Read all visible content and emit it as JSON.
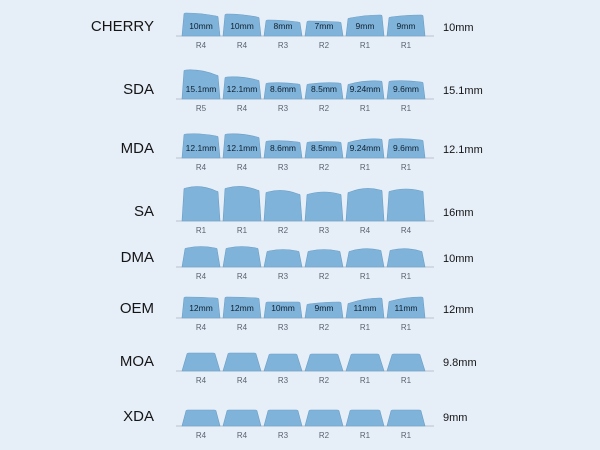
{
  "colors": {
    "background": "#e6eef8",
    "keycap": "#7fb3d9",
    "keycap_edge": "#6a9ec6",
    "baseline": "#b9c3cf"
  },
  "profiles": [
    {
      "name": "CHERRY",
      "height_label": "10mm",
      "shape": "cherry",
      "keys": [
        {
          "row": "R4",
          "label": "10mm"
        },
        {
          "row": "R4",
          "label": "10mm"
        },
        {
          "row": "R3",
          "label": "8mm"
        },
        {
          "row": "R2",
          "label": "7mm"
        },
        {
          "row": "R1",
          "label": "9mm"
        },
        {
          "row": "R1",
          "label": "9mm"
        }
      ]
    },
    {
      "name": "SDA",
      "height_label": "15.1mm",
      "shape": "sda",
      "keys": [
        {
          "row": "R5",
          "label": "15.1mm"
        },
        {
          "row": "R4",
          "label": "12.1mm"
        },
        {
          "row": "R3",
          "label": "8.6mm"
        },
        {
          "row": "R2",
          "label": "8.5mm"
        },
        {
          "row": "R1",
          "label": "9.24mm"
        },
        {
          "row": "R1",
          "label": "9.6mm"
        }
      ]
    },
    {
      "name": "MDA",
      "height_label": "12.1mm",
      "shape": "mda",
      "keys": [
        {
          "row": "R4",
          "label": "12.1mm"
        },
        {
          "row": "R4",
          "label": "12.1mm"
        },
        {
          "row": "R3",
          "label": "8.6mm"
        },
        {
          "row": "R2",
          "label": "8.5mm"
        },
        {
          "row": "R1",
          "label": "9.24mm"
        },
        {
          "row": "R1",
          "label": "9.6mm"
        }
      ]
    },
    {
      "name": "SA",
      "height_label": "16mm",
      "shape": "sa",
      "keys": [
        {
          "row": "R1",
          "label": ""
        },
        {
          "row": "R1",
          "label": ""
        },
        {
          "row": "R2",
          "label": ""
        },
        {
          "row": "R3",
          "label": ""
        },
        {
          "row": "R4",
          "label": ""
        },
        {
          "row": "R4",
          "label": ""
        }
      ]
    },
    {
      "name": "DMA",
      "height_label": "10mm",
      "shape": "dma",
      "keys": [
        {
          "row": "R4",
          "label": ""
        },
        {
          "row": "R4",
          "label": ""
        },
        {
          "row": "R3",
          "label": ""
        },
        {
          "row": "R2",
          "label": ""
        },
        {
          "row": "R1",
          "label": ""
        },
        {
          "row": "R1",
          "label": ""
        }
      ]
    },
    {
      "name": "OEM",
      "height_label": "12mm",
      "shape": "oem",
      "keys": [
        {
          "row": "R4",
          "label": "12mm"
        },
        {
          "row": "R4",
          "label": "12mm"
        },
        {
          "row": "R3",
          "label": "10mm"
        },
        {
          "row": "R2",
          "label": "9mm"
        },
        {
          "row": "R1",
          "label": "11mm"
        },
        {
          "row": "R1",
          "label": "11mm"
        }
      ]
    },
    {
      "name": "MOA",
      "height_label": "9.8mm",
      "shape": "moa",
      "keys": [
        {
          "row": "R4",
          "label": ""
        },
        {
          "row": "R4",
          "label": ""
        },
        {
          "row": "R3",
          "label": ""
        },
        {
          "row": "R2",
          "label": ""
        },
        {
          "row": "R1",
          "label": ""
        },
        {
          "row": "R1",
          "label": ""
        }
      ]
    },
    {
      "name": "XDA",
      "height_label": "9mm",
      "shape": "xda",
      "keys": [
        {
          "row": "R4",
          "label": ""
        },
        {
          "row": "R4",
          "label": ""
        },
        {
          "row": "R3",
          "label": ""
        },
        {
          "row": "R2",
          "label": ""
        },
        {
          "row": "R1",
          "label": ""
        },
        {
          "row": "R1",
          "label": ""
        }
      ]
    }
  ]
}
